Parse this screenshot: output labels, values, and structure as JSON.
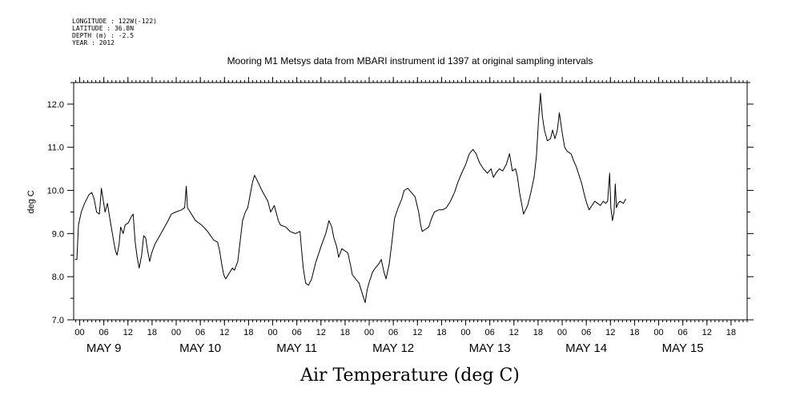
{
  "header": {
    "meta_lines": [
      "LONGITUDE : 122W(-122)",
      "LATITUDE : 36.8N",
      "DEPTH (m) : -2.5",
      "YEAR : 2012"
    ],
    "title": "Mooring M1 Metsys data from MBARI instrument id 1397 at original sampling intervals"
  },
  "chart_data": {
    "type": "line",
    "title": "Mooring M1 Metsys data from MBARI instrument id 1397 at original sampling intervals",
    "xlabel": "Air Temperature (deg C)",
    "ylabel": "deg C",
    "ylim": [
      7.0,
      12.5
    ],
    "yticks": [
      7.0,
      8.0,
      9.0,
      10.0,
      11.0,
      12.0
    ],
    "ytick_labels": [
      "7.0",
      "8.0",
      "9.0",
      "10.0",
      "11.0",
      "12.0"
    ],
    "xlim": [
      -1.5,
      166
    ],
    "x_units": "hours from 2012-05-09 00:00",
    "hour_ticks": [
      0,
      6,
      12,
      18,
      24,
      30,
      36,
      42,
      48,
      54,
      60,
      66,
      72,
      78,
      84,
      90,
      96,
      102,
      108,
      114,
      120,
      126,
      132,
      138,
      144,
      150,
      156,
      162
    ],
    "hour_labels": [
      "00",
      "06",
      "12",
      "18",
      "00",
      "06",
      "12",
      "18",
      "00",
      "06",
      "12",
      "18",
      "00",
      "06",
      "12",
      "18",
      "00",
      "06",
      "12",
      "18",
      "00",
      "06",
      "12",
      "18",
      "00",
      "06",
      "12",
      "18"
    ],
    "day_labels": [
      {
        "hour": 6,
        "label": "MAY  9"
      },
      {
        "hour": 30,
        "label": "MAY 10"
      },
      {
        "hour": 54,
        "label": "MAY 11"
      },
      {
        "hour": 78,
        "label": "MAY 12"
      },
      {
        "hour": 102,
        "label": "MAY 13"
      },
      {
        "hour": 126,
        "label": "MAY 14"
      },
      {
        "hour": 150,
        "label": "MAY 15"
      }
    ],
    "grid": false,
    "series": [
      {
        "color": "#000000",
        "points": [
          [
            -1.2,
            8.4
          ],
          [
            -0.7,
            8.4
          ],
          [
            -0.3,
            9.2
          ],
          [
            0.4,
            9.5
          ],
          [
            1.2,
            9.7
          ],
          [
            2.3,
            9.9
          ],
          [
            3.0,
            9.95
          ],
          [
            3.6,
            9.8
          ],
          [
            4.2,
            9.5
          ],
          [
            4.9,
            9.45
          ],
          [
            5.4,
            10.05
          ],
          [
            5.8,
            9.8
          ],
          [
            6.3,
            9.5
          ],
          [
            6.9,
            9.7
          ],
          [
            7.4,
            9.4
          ],
          [
            8.4,
            8.85
          ],
          [
            8.9,
            8.6
          ],
          [
            9.3,
            8.5
          ],
          [
            9.8,
            8.75
          ],
          [
            10.2,
            9.15
          ],
          [
            10.8,
            9.0
          ],
          [
            11.3,
            9.2
          ],
          [
            12.1,
            9.25
          ],
          [
            12.9,
            9.4
          ],
          [
            13.3,
            9.45
          ],
          [
            13.8,
            8.8
          ],
          [
            14.3,
            8.45
          ],
          [
            14.8,
            8.2
          ],
          [
            15.4,
            8.5
          ],
          [
            15.9,
            8.95
          ],
          [
            16.4,
            8.9
          ],
          [
            16.9,
            8.6
          ],
          [
            17.4,
            8.35
          ],
          [
            17.9,
            8.55
          ],
          [
            18.7,
            8.75
          ],
          [
            20.2,
            9.0
          ],
          [
            21.7,
            9.25
          ],
          [
            22.8,
            9.45
          ],
          [
            23.9,
            9.5
          ],
          [
            25.3,
            9.55
          ],
          [
            26.1,
            9.6
          ],
          [
            26.5,
            10.1
          ],
          [
            26.8,
            9.6
          ],
          [
            27.8,
            9.45
          ],
          [
            28.8,
            9.3
          ],
          [
            30.3,
            9.2
          ],
          [
            31.8,
            9.05
          ],
          [
            33.3,
            8.85
          ],
          [
            34.3,
            8.8
          ],
          [
            34.8,
            8.6
          ],
          [
            35.3,
            8.3
          ],
          [
            35.8,
            8.05
          ],
          [
            36.3,
            7.95
          ],
          [
            37.3,
            8.1
          ],
          [
            38.0,
            8.2
          ],
          [
            38.5,
            8.15
          ],
          [
            39.3,
            8.35
          ],
          [
            40.0,
            8.9
          ],
          [
            40.5,
            9.3
          ],
          [
            41.2,
            9.5
          ],
          [
            41.8,
            9.6
          ],
          [
            42.3,
            9.85
          ],
          [
            43.0,
            10.2
          ],
          [
            43.5,
            10.35
          ],
          [
            44.3,
            10.2
          ],
          [
            45.3,
            10.0
          ],
          [
            46.8,
            9.75
          ],
          [
            47.5,
            9.5
          ],
          [
            48.1,
            9.6
          ],
          [
            48.4,
            9.65
          ],
          [
            49.4,
            9.3
          ],
          [
            49.9,
            9.2
          ],
          [
            51.3,
            9.15
          ],
          [
            52.3,
            9.05
          ],
          [
            53.6,
            9.0
          ],
          [
            54.8,
            9.05
          ],
          [
            55.1,
            8.7
          ],
          [
            55.6,
            8.2
          ],
          [
            56.2,
            7.85
          ],
          [
            56.9,
            7.8
          ],
          [
            57.7,
            7.95
          ],
          [
            58.6,
            8.3
          ],
          [
            59.3,
            8.5
          ],
          [
            60.2,
            8.75
          ],
          [
            61.2,
            9.0
          ],
          [
            62.0,
            9.3
          ],
          [
            62.7,
            9.15
          ],
          [
            63.2,
            8.9
          ],
          [
            63.9,
            8.7
          ],
          [
            64.4,
            8.45
          ],
          [
            65.2,
            8.65
          ],
          [
            66.7,
            8.55
          ],
          [
            67.4,
            8.25
          ],
          [
            67.8,
            8.05
          ],
          [
            68.6,
            7.95
          ],
          [
            69.5,
            7.85
          ],
          [
            70.3,
            7.6
          ],
          [
            71.0,
            7.4
          ],
          [
            71.5,
            7.7
          ],
          [
            72.1,
            7.9
          ],
          [
            72.8,
            8.1
          ],
          [
            73.5,
            8.2
          ],
          [
            74.4,
            8.3
          ],
          [
            75.0,
            8.4
          ],
          [
            75.7,
            8.1
          ],
          [
            76.2,
            7.95
          ],
          [
            77.0,
            8.3
          ],
          [
            77.7,
            8.85
          ],
          [
            78.3,
            9.35
          ],
          [
            79.2,
            9.6
          ],
          [
            80.1,
            9.8
          ],
          [
            80.7,
            10.0
          ],
          [
            81.6,
            10.05
          ],
          [
            82.5,
            9.95
          ],
          [
            83.4,
            9.85
          ],
          [
            84.3,
            9.5
          ],
          [
            84.8,
            9.2
          ],
          [
            85.2,
            9.05
          ],
          [
            86.0,
            9.1
          ],
          [
            86.8,
            9.15
          ],
          [
            87.5,
            9.35
          ],
          [
            88.2,
            9.5
          ],
          [
            89.3,
            9.55
          ],
          [
            90.3,
            9.55
          ],
          [
            91.2,
            9.6
          ],
          [
            92.2,
            9.75
          ],
          [
            93.2,
            9.95
          ],
          [
            94.1,
            10.2
          ],
          [
            95.0,
            10.4
          ],
          [
            96.0,
            10.6
          ],
          [
            96.9,
            10.85
          ],
          [
            97.8,
            10.95
          ],
          [
            98.6,
            10.85
          ],
          [
            99.4,
            10.65
          ],
          [
            100.4,
            10.5
          ],
          [
            101.4,
            10.4
          ],
          [
            102.3,
            10.5
          ],
          [
            102.9,
            10.3
          ],
          [
            103.5,
            10.4
          ],
          [
            104.4,
            10.5
          ],
          [
            105.2,
            10.45
          ],
          [
            106.1,
            10.6
          ],
          [
            106.9,
            10.85
          ],
          [
            107.6,
            10.45
          ],
          [
            108.4,
            10.5
          ],
          [
            108.9,
            10.3
          ],
          [
            109.4,
            9.95
          ],
          [
            109.9,
            9.7
          ],
          [
            110.4,
            9.45
          ],
          [
            110.9,
            9.55
          ],
          [
            111.4,
            9.65
          ],
          [
            112.2,
            9.95
          ],
          [
            113.0,
            10.3
          ],
          [
            113.6,
            10.8
          ],
          [
            114.1,
            11.6
          ],
          [
            114.6,
            12.25
          ],
          [
            115.1,
            11.7
          ],
          [
            115.6,
            11.4
          ],
          [
            116.3,
            11.15
          ],
          [
            117.1,
            11.2
          ],
          [
            117.6,
            11.4
          ],
          [
            118.2,
            11.2
          ],
          [
            118.8,
            11.4
          ],
          [
            119.3,
            11.8
          ],
          [
            119.9,
            11.4
          ],
          [
            120.6,
            11.0
          ],
          [
            121.3,
            10.9
          ],
          [
            122.2,
            10.85
          ],
          [
            122.8,
            10.7
          ],
          [
            123.5,
            10.55
          ],
          [
            124.2,
            10.35
          ],
          [
            124.9,
            10.15
          ],
          [
            125.5,
            9.9
          ],
          [
            126.1,
            9.7
          ],
          [
            126.7,
            9.55
          ],
          [
            127.4,
            9.65
          ],
          [
            128.1,
            9.75
          ],
          [
            128.8,
            9.7
          ],
          [
            129.5,
            9.65
          ],
          [
            130.2,
            9.75
          ],
          [
            130.8,
            9.7
          ],
          [
            131.3,
            9.75
          ],
          [
            131.8,
            10.4
          ],
          [
            132.1,
            9.6
          ],
          [
            132.5,
            9.3
          ],
          [
            132.9,
            9.5
          ],
          [
            133.2,
            10.15
          ],
          [
            133.5,
            9.6
          ],
          [
            133.9,
            9.7
          ],
          [
            134.4,
            9.75
          ],
          [
            135.2,
            9.7
          ],
          [
            135.8,
            9.8
          ]
        ]
      }
    ]
  }
}
